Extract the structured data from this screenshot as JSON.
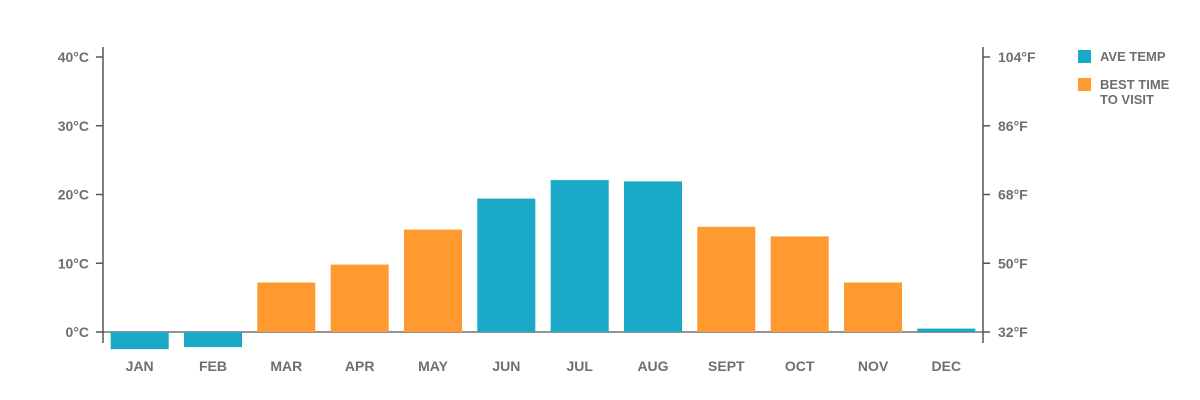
{
  "chart_data": {
    "type": "bar",
    "categories": [
      "JAN",
      "FEB",
      "MAR",
      "APR",
      "MAY",
      "JUN",
      "JUL",
      "AUG",
      "SEPT",
      "OCT",
      "NOV",
      "DEC"
    ],
    "values": [
      -2.5,
      -2.2,
      7.2,
      9.8,
      14.9,
      19.4,
      22.1,
      21.9,
      15.3,
      13.9,
      7.2,
      0.5
    ],
    "best_time_to_visit": [
      false,
      false,
      true,
      true,
      true,
      false,
      false,
      false,
      true,
      true,
      true,
      false
    ],
    "ylim": [
      0,
      40
    ],
    "y_ticks_left": [
      {
        "value": 0,
        "label": "0°C"
      },
      {
        "value": 10,
        "label": "10°C"
      },
      {
        "value": 20,
        "label": "20°C"
      },
      {
        "value": 30,
        "label": "30°C"
      },
      {
        "value": 40,
        "label": "40°C"
      }
    ],
    "y_ticks_right": [
      {
        "value": 0,
        "label": "32°F"
      },
      {
        "value": 10,
        "label": "50°F"
      },
      {
        "value": 20,
        "label": "68°F"
      },
      {
        "value": 30,
        "label": "86°F"
      },
      {
        "value": 40,
        "label": "104°F"
      }
    ],
    "grid": false,
    "legend_position": "top-right",
    "legend": [
      {
        "key": "ave_temp",
        "lines": [
          "AVE TEMP"
        ],
        "color": "#1aa9c6"
      },
      {
        "key": "best_time",
        "lines": [
          "BEST TIME",
          "TO VISIT"
        ],
        "color": "#ff9a31"
      }
    ],
    "colors": {
      "ave_temp": "#1aa9c6",
      "best_time": "#ff9a31",
      "axis": "#555555",
      "text": "#6f6f6f"
    }
  }
}
